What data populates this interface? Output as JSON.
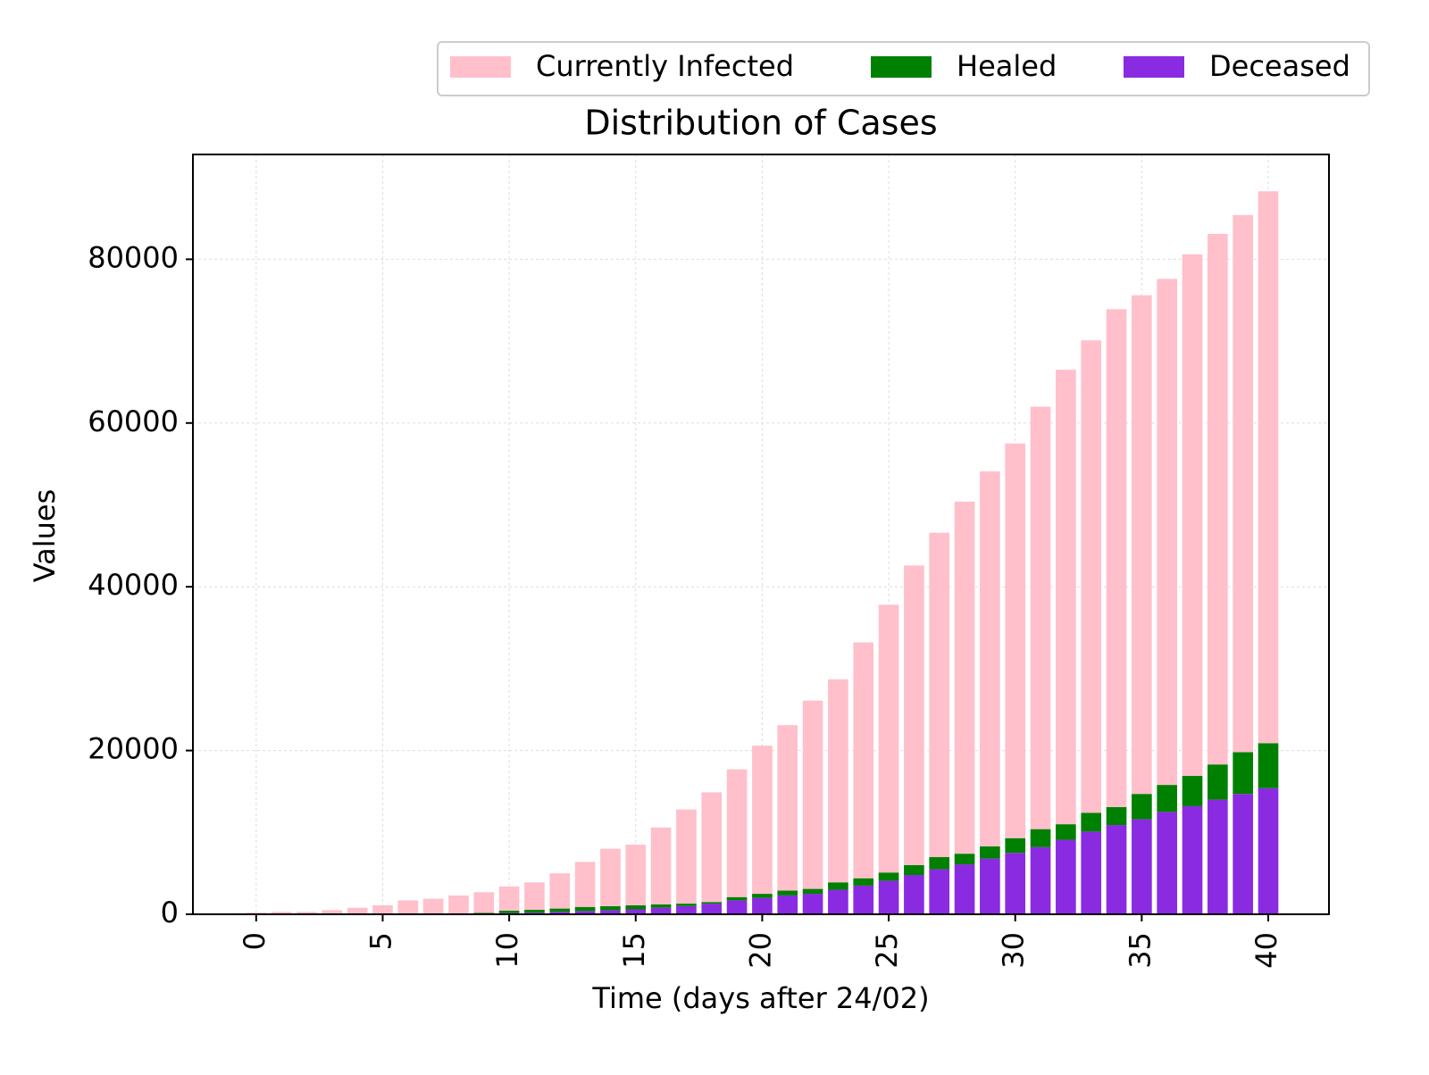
{
  "chart_data": {
    "type": "stacked_bar",
    "title": "Distribution of Cases",
    "xlabel": "Time (days after 24/02)",
    "ylabel": "Values",
    "x": [
      0,
      1,
      2,
      3,
      4,
      5,
      6,
      7,
      8,
      9,
      10,
      11,
      12,
      13,
      14,
      15,
      16,
      17,
      18,
      19,
      20,
      21,
      22,
      23,
      24,
      25,
      26,
      27,
      28,
      29,
      30,
      31,
      32,
      33,
      34,
      35,
      36,
      37,
      38,
      39,
      40
    ],
    "series": [
      {
        "name": "Currently Infected",
        "color": "#ffc0cb",
        "values": [
          200,
          300,
          300,
          500,
          790,
          1070,
          1630,
          1830,
          2200,
          2520,
          2950,
          3350,
          4300,
          5500,
          7000,
          7400,
          9400,
          11500,
          13400,
          15600,
          18100,
          20200,
          23000,
          24800,
          28800,
          32700,
          36600,
          39600,
          43000,
          45800,
          48200,
          51600,
          55500,
          57700,
          60800,
          60900,
          61800,
          63700,
          64800,
          65600,
          67400
        ]
      },
      {
        "name": "Healed",
        "color": "#008000",
        "values": [
          0,
          0,
          0,
          0,
          0,
          10,
          40,
          40,
          50,
          100,
          300,
          350,
          400,
          500,
          500,
          500,
          400,
          300,
          200,
          400,
          500,
          600,
          600,
          900,
          900,
          1000,
          1200,
          1500,
          1300,
          1500,
          1800,
          2200,
          1900,
          2300,
          2200,
          3100,
          3300,
          3700,
          4300,
          5100,
          5500
        ]
      },
      {
        "name": "Deceased",
        "color": "#8a2be2",
        "values": [
          0,
          0,
          0,
          0,
          10,
          20,
          30,
          30,
          50,
          80,
          150,
          200,
          300,
          400,
          500,
          600,
          800,
          1000,
          1300,
          1700,
          2000,
          2300,
          2500,
          3000,
          3500,
          4100,
          4800,
          5500,
          6100,
          6800,
          7500,
          8200,
          9100,
          10100,
          10900,
          11600,
          12500,
          13200,
          14000,
          14700,
          15400
        ]
      }
    ],
    "xlim": [
      -2.5,
      42.4
    ],
    "xticks": [
      0,
      5,
      10,
      15,
      20,
      25,
      30,
      35,
      40
    ],
    "ylim": [
      0,
      92800
    ],
    "yticks": [
      0,
      20000,
      40000,
      60000,
      80000
    ],
    "grid": true,
    "legend": "top right"
  }
}
